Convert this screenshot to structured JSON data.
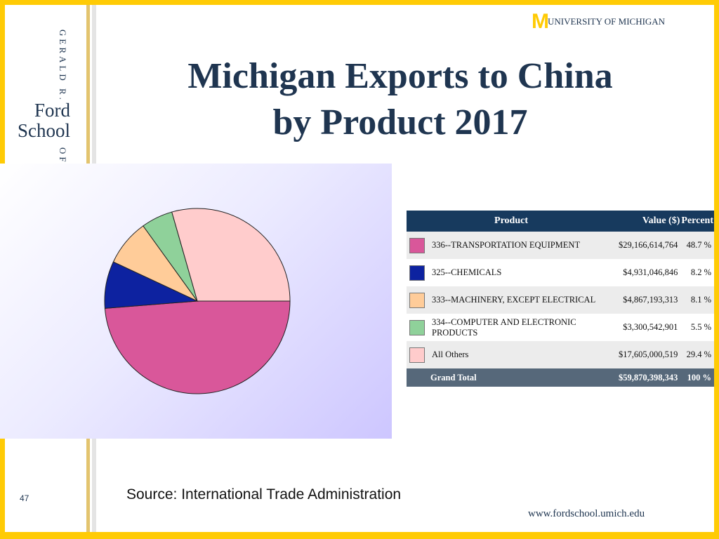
{
  "header": {
    "logo_text": "UNIVERSITY OF MICHIGAN"
  },
  "sidebar": {
    "top_text": "GERALD R.",
    "name_line1": "Ford",
    "name_line2": "School",
    "bottom_text": "OF"
  },
  "chart_data": {
    "type": "pie",
    "title": "Michigan Exports to China\nby Product 2017",
    "categories": [
      "336--TRANSPORTATION EQUIPMENT",
      "325--CHEMICALS",
      "333--MACHINERY, EXCEPT ELECTRICAL",
      "334--COMPUTER AND ELECTRONIC PRODUCTS",
      "All Others"
    ],
    "values": [
      48.7,
      8.2,
      8.1,
      5.5,
      29.4
    ],
    "value_labels": [
      "48.7 %",
      "8.2 %",
      "8.1 %",
      "5.5 %",
      "29.4 %"
    ],
    "colors": [
      "#d9579a",
      "#0d22a0",
      "#ffcc99",
      "#8fd19a",
      "#ffcccc"
    ]
  },
  "table": {
    "headers": [
      "Product",
      "Value ($)",
      "Percent"
    ],
    "dollar_values": [
      "$29,166,614,764",
      "$4,931,046,846",
      "$4,867,193,313",
      "$3,300,542,901",
      "$17,605,000,519"
    ],
    "total": {
      "label": "Grand Total",
      "value": "$59,870,398,343",
      "percent": "100 %"
    }
  },
  "footer": {
    "page_number": "47",
    "source": "Source:  International Trade Administration",
    "url": "www.fordschool.umich.edu"
  }
}
